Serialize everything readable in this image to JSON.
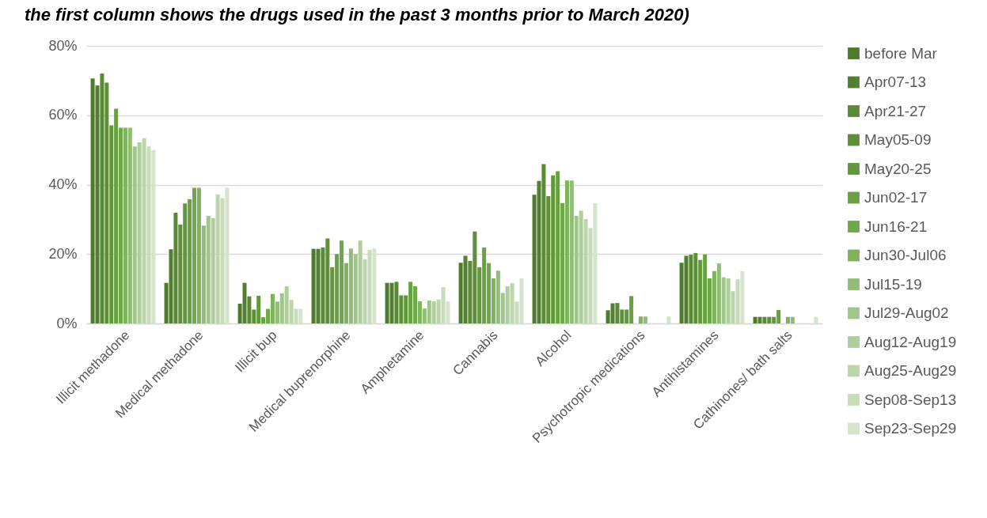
{
  "chart_data": {
    "type": "bar",
    "title": "the first column shows the drugs used in the past 3 months prior to March 2020)",
    "categories": [
      "Illicit methadone",
      "Medical methadone",
      "Illicit bup",
      "Medical buprenorphine",
      "Amphetamine",
      "Cannabis",
      "Alcohol",
      "Psychotropic medications",
      "Antihistamines",
      "Cathinones/ bath salts"
    ],
    "series": [
      {
        "name": "before Mar",
        "color": "#4e7a2e",
        "values": [
          70.6,
          11.7,
          5.7,
          21.5,
          11.7,
          17.5,
          37.1,
          3.8,
          17.5,
          1.9
        ]
      },
      {
        "name": "Apr07-13",
        "color": "#557f30",
        "values": [
          68.6,
          21.4,
          11.7,
          21.5,
          11.7,
          19.5,
          41.1,
          5.8,
          19.5,
          1.9
        ]
      },
      {
        "name": "Apr21-27",
        "color": "#5b8a37",
        "values": [
          72.0,
          31.9,
          7.8,
          21.9,
          12.0,
          18.0,
          45.9,
          5.9,
          19.8,
          1.9
        ]
      },
      {
        "name": "May05-09",
        "color": "#5f9039",
        "values": [
          69.4,
          28.5,
          4.0,
          24.5,
          8.1,
          26.5,
          36.7,
          4.0,
          20.3,
          1.9
        ]
      },
      {
        "name": "May20-25",
        "color": "#62983c",
        "values": [
          57.1,
          34.6,
          8.0,
          16.2,
          8.1,
          16.2,
          42.7,
          4.0,
          18.3,
          1.9
        ]
      },
      {
        "name": "Jun02-17",
        "color": "#68a042",
        "values": [
          61.9,
          35.8,
          1.8,
          20.0,
          12.0,
          21.9,
          43.9,
          7.9,
          19.9,
          3.9
        ]
      },
      {
        "name": "Jun16-21",
        "color": "#6fa84a",
        "values": [
          56.4,
          39.1,
          4.2,
          23.9,
          10.7,
          17.4,
          34.7,
          0,
          13.0,
          0
        ]
      },
      {
        "name": "Jun30-Jul06",
        "color": "#80b35e",
        "values": [
          56.4,
          39.1,
          8.5,
          17.4,
          6.4,
          13.0,
          41.2,
          2.0,
          15.1,
          1.9
        ]
      },
      {
        "name": "Jul15-19",
        "color": "#91bd78",
        "values": [
          56.4,
          28.2,
          6.3,
          21.6,
          4.3,
          15.2,
          41.2,
          2.0,
          17.3,
          1.9
        ]
      },
      {
        "name": "Jul29-Aug02",
        "color": "#a1c68c",
        "values": [
          51.0,
          31.0,
          8.7,
          20.0,
          6.6,
          8.8,
          31.0,
          0,
          13.3,
          0
        ]
      },
      {
        "name": "Aug12-Aug19",
        "color": "#b0cd9d",
        "values": [
          52.2,
          30.3,
          10.7,
          23.9,
          6.4,
          10.7,
          32.5,
          0,
          13.0,
          0
        ]
      },
      {
        "name": "Aug25-Aug29",
        "color": "#bcd5ab",
        "values": [
          53.4,
          37.2,
          6.8,
          18.5,
          6.9,
          11.6,
          30.1,
          0,
          9.3,
          0
        ]
      },
      {
        "name": "Sep08-Sep13",
        "color": "#c8dcba",
        "values": [
          51.0,
          36.1,
          4.2,
          21.2,
          10.5,
          6.3,
          27.5,
          0,
          12.7,
          0
        ]
      },
      {
        "name": "Sep23-Sep29",
        "color": "#d5e4cb",
        "values": [
          50.0,
          39.1,
          4.2,
          21.6,
          6.4,
          13.0,
          34.7,
          2.0,
          15.1,
          1.9
        ]
      }
    ],
    "ylim": [
      0,
      80
    ],
    "yticks": [
      {
        "value": 0,
        "label": "0%"
      },
      {
        "value": 20,
        "label": "20%"
      },
      {
        "value": 40,
        "label": "40%"
      },
      {
        "value": 60,
        "label": "60%"
      },
      {
        "value": 80,
        "label": "80%"
      }
    ],
    "grid": "y",
    "legend": "right"
  }
}
